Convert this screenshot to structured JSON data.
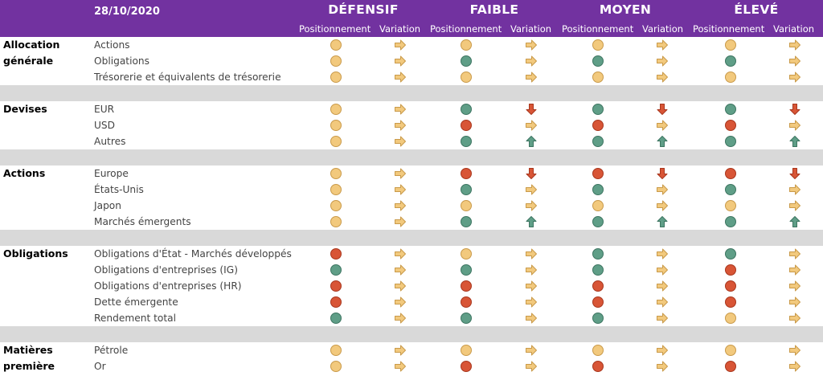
{
  "header": {
    "date": "28/10/2020",
    "profiles": [
      "DÉFENSIF",
      "FAIBLE",
      "MOYEN",
      "ÉLEVÉ"
    ],
    "positioning_label": "Positionnement",
    "variation_label": "Variation"
  },
  "colors": {
    "header_bg": "#7232a0",
    "neutral": "#f2c97d",
    "positive": "#5f9e87",
    "negative": "#d85536"
  },
  "sections": [
    {
      "label": "Allocation générale",
      "rows": [
        {
          "label": "Actions",
          "cells": [
            [
              "neutral",
              "right"
            ],
            [
              "neutral",
              "right"
            ],
            [
              "neutral",
              "right"
            ],
            [
              "neutral",
              "right"
            ]
          ]
        },
        {
          "label": "Obligations",
          "cells": [
            [
              "neutral",
              "right"
            ],
            [
              "positive",
              "right"
            ],
            [
              "positive",
              "right"
            ],
            [
              "positive",
              "right"
            ]
          ]
        },
        {
          "label": "Trésorerie et équivalents de trésorerie",
          "cells": [
            [
              "neutral",
              "right"
            ],
            [
              "neutral",
              "right"
            ],
            [
              "neutral",
              "right"
            ],
            [
              "neutral",
              "right"
            ]
          ]
        }
      ]
    },
    {
      "label": "Devises",
      "rows": [
        {
          "label": "EUR",
          "cells": [
            [
              "neutral",
              "right"
            ],
            [
              "positive",
              "down"
            ],
            [
              "positive",
              "down"
            ],
            [
              "positive",
              "down"
            ]
          ]
        },
        {
          "label": "USD",
          "cells": [
            [
              "neutral",
              "right"
            ],
            [
              "negative",
              "right"
            ],
            [
              "negative",
              "right"
            ],
            [
              "negative",
              "right"
            ]
          ]
        },
        {
          "label": "Autres",
          "cells": [
            [
              "neutral",
              "right"
            ],
            [
              "positive",
              "up"
            ],
            [
              "positive",
              "up"
            ],
            [
              "positive",
              "up"
            ]
          ]
        }
      ]
    },
    {
      "label": "Actions",
      "rows": [
        {
          "label": "Europe",
          "cells": [
            [
              "neutral",
              "right"
            ],
            [
              "negative",
              "down"
            ],
            [
              "negative",
              "down"
            ],
            [
              "negative",
              "down"
            ]
          ]
        },
        {
          "label": "États-Unis",
          "cells": [
            [
              "neutral",
              "right"
            ],
            [
              "positive",
              "right"
            ],
            [
              "positive",
              "right"
            ],
            [
              "positive",
              "right"
            ]
          ]
        },
        {
          "label": "Japon",
          "cells": [
            [
              "neutral",
              "right"
            ],
            [
              "neutral",
              "right"
            ],
            [
              "neutral",
              "right"
            ],
            [
              "neutral",
              "right"
            ]
          ]
        },
        {
          "label": "Marchés émergents",
          "cells": [
            [
              "neutral",
              "right"
            ],
            [
              "positive",
              "up"
            ],
            [
              "positive",
              "up"
            ],
            [
              "positive",
              "up"
            ]
          ]
        }
      ]
    },
    {
      "label": "Obligations",
      "rows": [
        {
          "label": "Obligations d'État - Marchés développés",
          "cells": [
            [
              "negative",
              "right"
            ],
            [
              "neutral",
              "right"
            ],
            [
              "positive",
              "right"
            ],
            [
              "positive",
              "right"
            ]
          ]
        },
        {
          "label": "Obligations d'entreprises (IG)",
          "cells": [
            [
              "positive",
              "right"
            ],
            [
              "positive",
              "right"
            ],
            [
              "positive",
              "right"
            ],
            [
              "negative",
              "right"
            ]
          ]
        },
        {
          "label": "Obligations d'entreprises (HR)",
          "cells": [
            [
              "negative",
              "right"
            ],
            [
              "negative",
              "right"
            ],
            [
              "negative",
              "right"
            ],
            [
              "negative",
              "right"
            ]
          ]
        },
        {
          "label": "Dette émergente",
          "cells": [
            [
              "negative",
              "right"
            ],
            [
              "negative",
              "right"
            ],
            [
              "negative",
              "right"
            ],
            [
              "negative",
              "right"
            ]
          ]
        },
        {
          "label": "Rendement total",
          "cells": [
            [
              "positive",
              "right"
            ],
            [
              "positive",
              "right"
            ],
            [
              "positive",
              "right"
            ],
            [
              "neutral",
              "right"
            ]
          ]
        }
      ]
    },
    {
      "label": "Matières première",
      "rows": [
        {
          "label": "Pétrole",
          "cells": [
            [
              "neutral",
              "right"
            ],
            [
              "neutral",
              "right"
            ],
            [
              "neutral",
              "right"
            ],
            [
              "neutral",
              "right"
            ]
          ]
        },
        {
          "label": "Or",
          "cells": [
            [
              "neutral",
              "right"
            ],
            [
              "negative",
              "right"
            ],
            [
              "negative",
              "right"
            ],
            [
              "negative",
              "right"
            ]
          ]
        }
      ]
    }
  ]
}
